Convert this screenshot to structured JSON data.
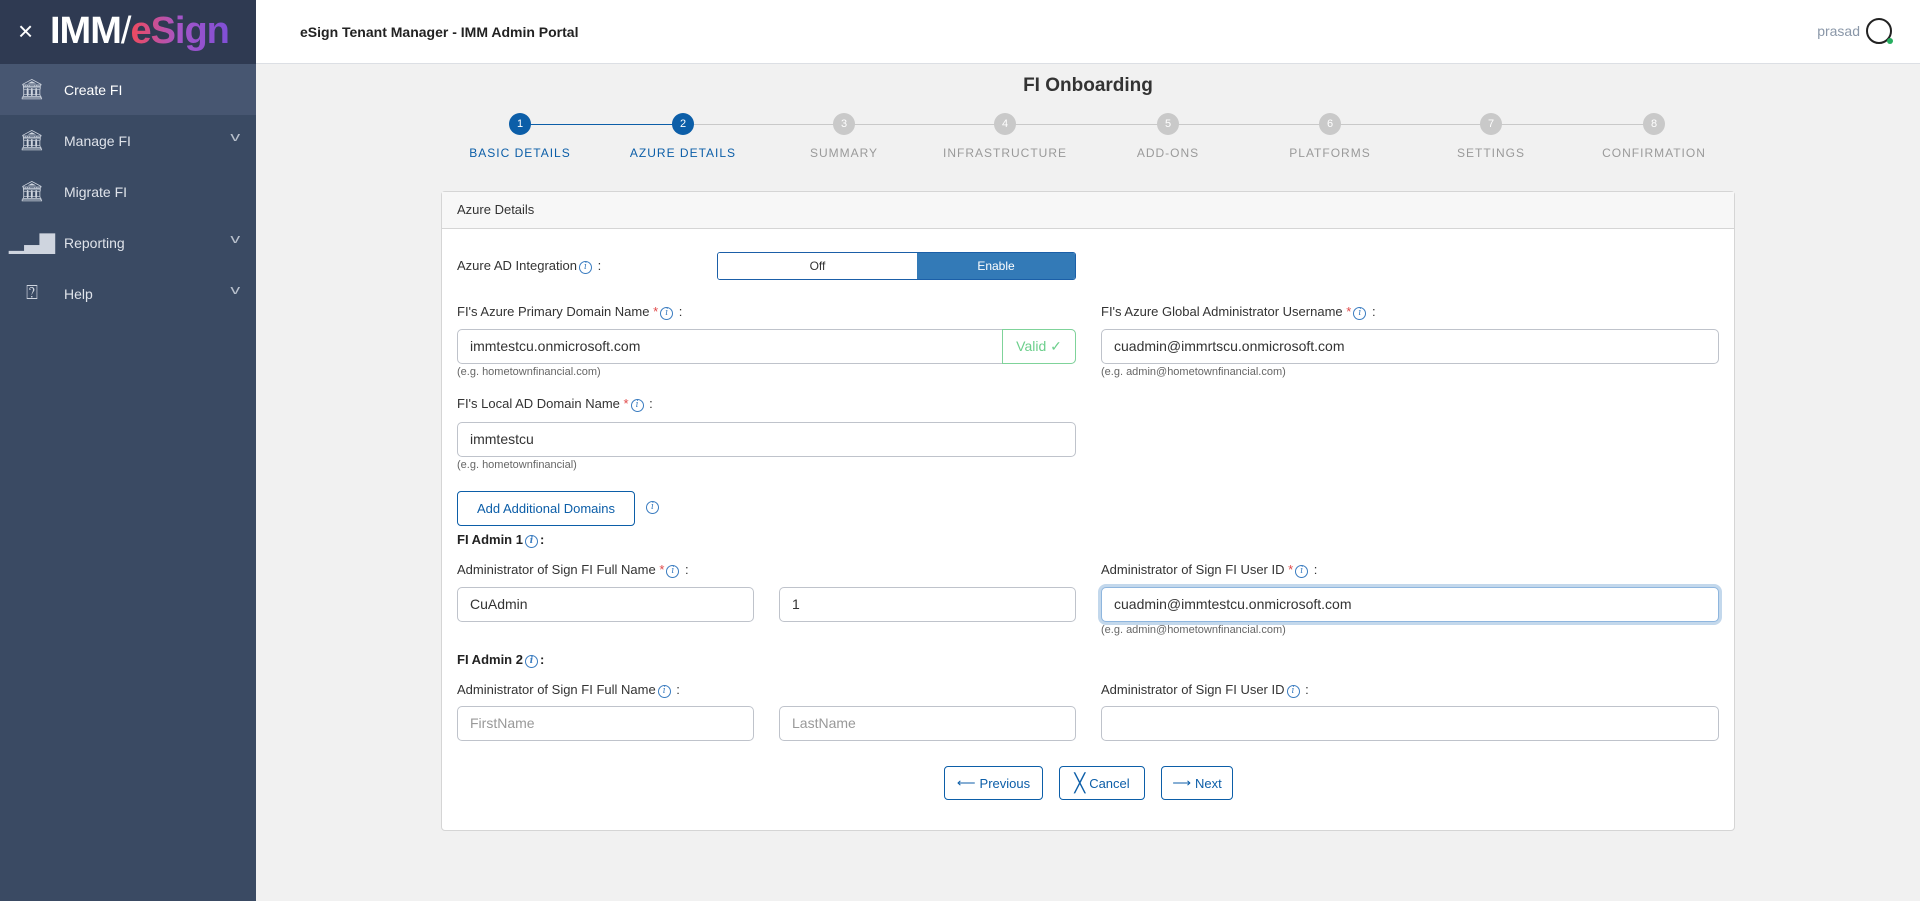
{
  "app": {
    "logo_text": "IMM/eSign",
    "header_title": "eSign Tenant Manager - IMM Admin Portal",
    "user": "prasad"
  },
  "sidebar": {
    "items": [
      {
        "label": "Create FI",
        "icon": "bank-plus-icon",
        "active": true
      },
      {
        "label": "Manage FI",
        "icon": "bank-gear-icon",
        "expandable": true
      },
      {
        "label": "Migrate FI",
        "icon": "bank-arrow-icon"
      },
      {
        "label": "Reporting",
        "icon": "bar-chart-icon",
        "expandable": true
      },
      {
        "label": "Help",
        "icon": "help-bubble-icon",
        "expandable": true
      }
    ]
  },
  "page": {
    "title": "FI Onboarding"
  },
  "steps": [
    {
      "num": "1",
      "label": "BASIC DETAILS",
      "done": true
    },
    {
      "num": "2",
      "label": "AZURE DETAILS",
      "done": true
    },
    {
      "num": "3",
      "label": "SUMMARY"
    },
    {
      "num": "4",
      "label": "INFRASTRUCTURE"
    },
    {
      "num": "5",
      "label": "ADD-ONS"
    },
    {
      "num": "6",
      "label": "PLATFORMS"
    },
    {
      "num": "7",
      "label": "SETTINGS"
    },
    {
      "num": "8",
      "label": "CONFIRMATION"
    }
  ],
  "form": {
    "card_title": "Azure Details",
    "azure_ad": {
      "label": "Azure AD Integration",
      "off": "Off",
      "enable": "Enable",
      "selected": "Enable"
    },
    "primary_domain": {
      "label": "FI's Azure Primary Domain Name",
      "value": "immtestcu.onmicrosoft.com",
      "status": "Valid ✓",
      "hint": "(e.g. hometownfinancial.com)"
    },
    "global_admin": {
      "label": "FI's Azure Global Administrator Username",
      "value": "cuadmin@immrtscu.onmicrosoft.com",
      "hint": "(e.g. admin@hometownfinancial.com)"
    },
    "local_domain": {
      "label": "FI's Local AD Domain Name",
      "value": "immtestcu",
      "hint": "(e.g. hometownfinancial)"
    },
    "add_domains": "Add Additional Domains",
    "admin1": {
      "title": "FI Admin 1",
      "name_label": "Administrator of Sign FI Full Name",
      "first": "CuAdmin",
      "last": "1",
      "id_label": "Administrator of Sign FI User ID",
      "id": "cuadmin@immtestcu.onmicrosoft.com",
      "hint": "(e.g. admin@hometownfinancial.com)"
    },
    "admin2": {
      "title": "FI Admin 2",
      "name_label": "Administrator of Sign FI Full Name",
      "first_placeholder": "FirstName",
      "last_placeholder": "LastName",
      "id_label": "Administrator of Sign FI User ID",
      "id": ""
    },
    "buttons": {
      "previous": "Previous",
      "cancel": "Cancel",
      "next": "Next"
    }
  },
  "colors": {
    "primary": "#0c5ea8",
    "sidebar": "#3a4a63",
    "valid": "#6ccf8c",
    "required": "#e04848"
  }
}
